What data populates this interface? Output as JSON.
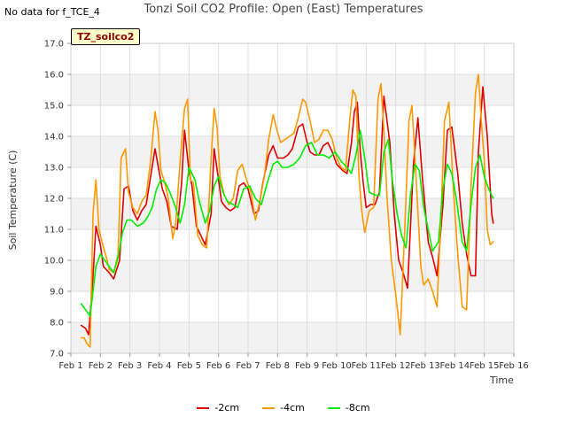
{
  "no_data_note": "No data for f_TCE_4",
  "site_label": "TZ_soilco2",
  "chart_data": {
    "type": "line",
    "title": "Tonzi Soil CO2 Profile: Open (East) Temperatures",
    "xlabel": "Time",
    "ylabel": "Soil Temperature (C)",
    "ylim": [
      7.0,
      17.0
    ],
    "xlim": [
      1,
      16
    ],
    "y_ticks": [
      "7.0",
      "8.0",
      "9.0",
      "10.0",
      "11.0",
      "12.0",
      "13.0",
      "14.0",
      "15.0",
      "16.0",
      "17.0"
    ],
    "x_ticks": [
      "Feb 1",
      "Feb 2",
      "Feb 3",
      "Feb 4",
      "Feb 5",
      "Feb 6",
      "Feb 7",
      "Feb 8",
      "Feb 9",
      "Feb 10",
      "Feb 11",
      "Feb 12",
      "Feb 13",
      "Feb 14",
      "Feb 15",
      "Feb 16"
    ],
    "grid": true,
    "background_bands": true,
    "legend_position": "bottom",
    "series": [
      {
        "name": "-2cm",
        "color": "#dd0000",
        "x": [
          1.35,
          1.5,
          1.6,
          1.75,
          1.85,
          2.0,
          2.1,
          2.3,
          2.45,
          2.65,
          2.8,
          2.95,
          3.1,
          3.25,
          3.4,
          3.55,
          3.7,
          3.85,
          4.0,
          4.1,
          4.25,
          4.4,
          4.6,
          4.75,
          4.85,
          5.0,
          5.1,
          5.25,
          5.4,
          5.55,
          5.75,
          5.85,
          6.0,
          6.1,
          6.25,
          6.4,
          6.55,
          6.7,
          6.85,
          7.0,
          7.2,
          7.35,
          7.5,
          7.7,
          7.85,
          8.0,
          8.2,
          8.35,
          8.5,
          8.7,
          8.85,
          9.0,
          9.1,
          9.25,
          9.4,
          9.55,
          9.7,
          9.85,
          10.0,
          10.2,
          10.35,
          10.5,
          10.6,
          10.7,
          10.8,
          10.9,
          11.0,
          11.15,
          11.3,
          11.45,
          11.6,
          11.8,
          11.95,
          12.1,
          12.25,
          12.4,
          12.6,
          12.75,
          12.9,
          13.1,
          13.25,
          13.4,
          13.6,
          13.75,
          13.9,
          14.1,
          14.25,
          14.4,
          14.55,
          14.7,
          14.8,
          14.95,
          15.1,
          15.25,
          15.3
        ],
        "y": [
          7.9,
          7.8,
          7.6,
          9.5,
          11.1,
          10.5,
          9.8,
          9.6,
          9.4,
          10.0,
          12.3,
          12.4,
          11.6,
          11.3,
          11.6,
          11.8,
          12.7,
          13.6,
          12.8,
          12.3,
          11.9,
          11.1,
          11.0,
          12.5,
          14.2,
          12.9,
          12.4,
          11.1,
          10.8,
          10.5,
          11.5,
          13.6,
          12.6,
          11.9,
          11.7,
          11.6,
          11.7,
          12.4,
          12.5,
          12.3,
          11.5,
          11.6,
          12.5,
          13.4,
          13.7,
          13.3,
          13.3,
          13.4,
          13.6,
          14.3,
          14.4,
          13.8,
          13.5,
          13.4,
          13.4,
          13.7,
          13.8,
          13.5,
          13.1,
          12.9,
          12.8,
          13.8,
          14.8,
          15.1,
          13.5,
          12.5,
          11.7,
          11.8,
          11.8,
          12.2,
          15.3,
          13.8,
          11.5,
          10.0,
          9.6,
          9.1,
          13.1,
          14.6,
          12.7,
          10.6,
          10.1,
          9.5,
          11.8,
          14.2,
          14.3,
          12.8,
          11.2,
          10.2,
          9.5,
          9.5,
          13.5,
          15.6,
          14.0,
          11.5,
          11.2
        ]
      },
      {
        "name": "-4cm",
        "color": "#ff9900",
        "x": [
          1.35,
          1.45,
          1.55,
          1.65,
          1.75,
          1.85,
          1.95,
          2.05,
          2.2,
          2.3,
          2.45,
          2.6,
          2.7,
          2.85,
          2.95,
          3.1,
          3.25,
          3.4,
          3.55,
          3.7,
          3.85,
          3.95,
          4.05,
          4.15,
          4.3,
          4.45,
          4.55,
          4.7,
          4.85,
          4.95,
          5.05,
          5.15,
          5.3,
          5.45,
          5.6,
          5.75,
          5.85,
          5.95,
          6.05,
          6.2,
          6.35,
          6.5,
          6.65,
          6.8,
          6.95,
          7.1,
          7.25,
          7.4,
          7.55,
          7.7,
          7.85,
          7.95,
          8.1,
          8.25,
          8.4,
          8.55,
          8.7,
          8.85,
          8.95,
          9.1,
          9.25,
          9.4,
          9.55,
          9.7,
          9.85,
          10.0,
          10.15,
          10.3,
          10.45,
          10.55,
          10.65,
          10.75,
          10.85,
          10.95,
          11.1,
          11.25,
          11.4,
          11.5,
          11.6,
          11.7,
          11.85,
          12.0,
          12.15,
          12.3,
          12.45,
          12.55,
          12.7,
          12.85,
          12.95,
          13.1,
          13.25,
          13.4,
          13.55,
          13.65,
          13.8,
          13.95,
          14.1,
          14.25,
          14.4,
          14.55,
          14.7,
          14.8,
          14.9,
          15.0,
          15.1,
          15.2,
          15.3
        ],
        "y": [
          7.5,
          7.5,
          7.3,
          7.2,
          11.5,
          12.6,
          11.0,
          10.6,
          10.1,
          9.7,
          9.6,
          10.2,
          13.3,
          13.6,
          12.2,
          11.7,
          11.5,
          11.9,
          12.1,
          13.2,
          14.8,
          14.2,
          12.9,
          12.6,
          12.0,
          10.7,
          11.2,
          13.2,
          14.9,
          15.2,
          12.6,
          12.5,
          10.8,
          10.5,
          10.4,
          13.3,
          14.9,
          14.3,
          12.7,
          12.1,
          11.8,
          12.0,
          12.9,
          13.1,
          12.6,
          12.2,
          11.3,
          11.9,
          12.7,
          13.9,
          14.7,
          14.3,
          13.8,
          13.9,
          14.0,
          14.1,
          14.6,
          15.2,
          15.1,
          14.5,
          13.8,
          13.9,
          14.2,
          14.2,
          13.9,
          13.3,
          13.0,
          12.9,
          14.6,
          15.5,
          15.3,
          12.8,
          11.6,
          10.9,
          11.6,
          11.7,
          15.2,
          15.7,
          14.2,
          12.1,
          10.0,
          8.9,
          7.6,
          10.9,
          14.5,
          15.0,
          12.5,
          9.8,
          9.2,
          9.4,
          9.0,
          8.5,
          11.8,
          14.5,
          15.1,
          12.3,
          10.2,
          8.5,
          8.4,
          12.4,
          15.4,
          16.0,
          14.5,
          13.2,
          11.0,
          10.5,
          10.6
        ]
      },
      {
        "name": "-8cm",
        "color": "#00ee00",
        "x": [
          1.35,
          1.5,
          1.65,
          1.75,
          1.85,
          2.0,
          2.15,
          2.3,
          2.45,
          2.6,
          2.75,
          2.9,
          3.05,
          3.25,
          3.45,
          3.6,
          3.75,
          3.9,
          4.05,
          4.2,
          4.35,
          4.55,
          4.7,
          4.85,
          5.0,
          5.2,
          5.35,
          5.55,
          5.7,
          5.85,
          6.0,
          6.15,
          6.3,
          6.5,
          6.65,
          6.85,
          7.05,
          7.25,
          7.45,
          7.65,
          7.85,
          8.0,
          8.15,
          8.35,
          8.55,
          8.75,
          8.95,
          9.15,
          9.35,
          9.55,
          9.75,
          9.95,
          10.15,
          10.35,
          10.5,
          10.65,
          10.8,
          10.95,
          11.1,
          11.3,
          11.45,
          11.6,
          11.75,
          11.9,
          12.05,
          12.2,
          12.35,
          12.5,
          12.65,
          12.8,
          12.95,
          13.1,
          13.25,
          13.45,
          13.6,
          13.75,
          13.9,
          14.05,
          14.25,
          14.4,
          14.55,
          14.7,
          14.85,
          15.0,
          15.15,
          15.3
        ],
        "y": [
          8.6,
          8.4,
          8.2,
          9.0,
          9.8,
          10.2,
          10.0,
          9.8,
          9.6,
          10.1,
          10.9,
          11.3,
          11.3,
          11.1,
          11.2,
          11.4,
          11.7,
          12.3,
          12.6,
          12.5,
          12.2,
          11.7,
          11.2,
          11.8,
          13.0,
          12.6,
          11.9,
          11.2,
          11.6,
          12.4,
          12.7,
          12.2,
          11.9,
          11.8,
          11.7,
          12.3,
          12.4,
          12.0,
          11.8,
          12.5,
          13.1,
          13.2,
          13.0,
          13.0,
          13.1,
          13.3,
          13.7,
          13.8,
          13.4,
          13.4,
          13.3,
          13.5,
          13.2,
          13.0,
          12.8,
          13.4,
          14.2,
          13.3,
          12.2,
          12.1,
          12.1,
          13.5,
          13.9,
          12.5,
          11.5,
          10.8,
          10.4,
          12.1,
          13.1,
          12.9,
          11.7,
          11.0,
          10.3,
          10.6,
          12.3,
          13.1,
          12.8,
          12.0,
          10.6,
          10.3,
          11.8,
          13.0,
          13.4,
          12.7,
          12.3,
          12.0
        ]
      }
    ]
  }
}
